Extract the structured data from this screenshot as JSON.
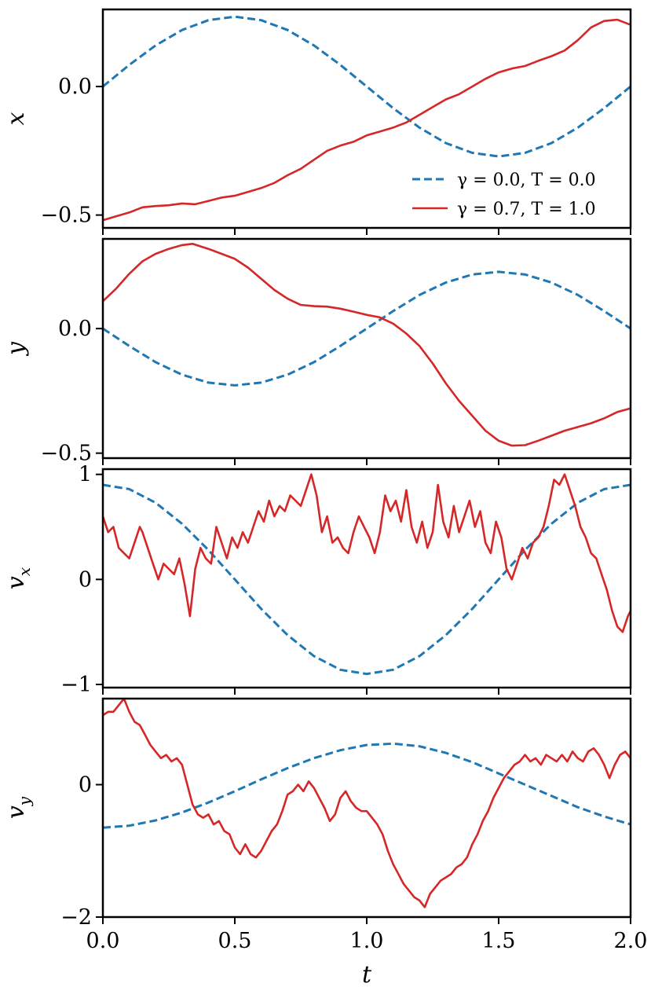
{
  "chart_data": {
    "type": "line",
    "xlabel": "t",
    "xlim": [
      0.0,
      2.0
    ],
    "xticks": [
      0.0,
      0.5,
      1.0,
      1.5,
      2.0
    ],
    "xtick_labels": [
      "0.0",
      "0.5",
      "1.0",
      "1.5",
      "2.0"
    ],
    "legend": {
      "placement": "lower-right",
      "panel": "x",
      "entries": [
        {
          "series": "dashed",
          "label": "γ = 0.0, T = 0.0"
        },
        {
          "series": "solid",
          "label": "γ = 0.7, T = 1.0"
        }
      ]
    },
    "colors": {
      "dashed": "#1f77b4",
      "solid": "#d62728"
    },
    "grid": false,
    "panels": [
      {
        "ylabel": "x",
        "ylabel_sub": "",
        "ylim": [
          -0.55,
          0.3
        ],
        "yticks": [
          -0.5,
          0.0
        ],
        "ytick_labels": [
          "−0.5",
          "0.0"
        ],
        "series": [
          {
            "name": "γ = 0.0, T = 0.0",
            "style": "dashed",
            "x": [
              0.0,
              0.1,
              0.2,
              0.3,
              0.4,
              0.5,
              0.6,
              0.7,
              0.8,
              0.9,
              1.0,
              1.1,
              1.2,
              1.3,
              1.4,
              1.5,
              1.6,
              1.7,
              1.8,
              1.9,
              2.0
            ],
            "y": [
              0.0,
              0.084,
              0.16,
              0.22,
              0.258,
              0.272,
              0.258,
              0.22,
              0.16,
              0.084,
              0.0,
              -0.084,
              -0.16,
              -0.22,
              -0.258,
              -0.272,
              -0.258,
              -0.22,
              -0.16,
              -0.084,
              0.0
            ]
          },
          {
            "name": "γ = 0.7, T = 1.0",
            "style": "solid",
            "x": [
              0.0,
              0.05,
              0.1,
              0.15,
              0.2,
              0.25,
              0.3,
              0.35,
              0.4,
              0.45,
              0.5,
              0.55,
              0.6,
              0.65,
              0.7,
              0.75,
              0.8,
              0.85,
              0.9,
              0.95,
              1.0,
              1.05,
              1.1,
              1.15,
              1.2,
              1.25,
              1.3,
              1.35,
              1.4,
              1.45,
              1.5,
              1.55,
              1.6,
              1.65,
              1.7,
              1.75,
              1.8,
              1.85,
              1.9,
              1.95,
              2.0
            ],
            "y": [
              -0.52,
              -0.505,
              -0.49,
              -0.47,
              -0.465,
              -0.462,
              -0.455,
              -0.458,
              -0.445,
              -0.432,
              -0.425,
              -0.41,
              -0.395,
              -0.375,
              -0.345,
              -0.32,
              -0.285,
              -0.25,
              -0.23,
              -0.215,
              -0.19,
              -0.175,
              -0.16,
              -0.14,
              -0.11,
              -0.08,
              -0.05,
              -0.03,
              0.0,
              0.03,
              0.055,
              0.07,
              0.08,
              0.1,
              0.118,
              0.14,
              0.18,
              0.23,
              0.255,
              0.26,
              0.24
            ]
          }
        ]
      },
      {
        "ylabel": "y",
        "ylabel_sub": "",
        "ylim": [
          -0.52,
          0.36
        ],
        "yticks": [
          -0.5,
          0.0
        ],
        "ytick_labels": [
          "−0.5",
          "0.0"
        ],
        "series": [
          {
            "name": "γ = 0.0, T = 0.0",
            "style": "dashed",
            "x": [
              0.0,
              0.1,
              0.2,
              0.3,
              0.4,
              0.5,
              0.6,
              0.7,
              0.8,
              0.9,
              1.0,
              1.1,
              1.2,
              1.3,
              1.4,
              1.5,
              1.6,
              1.7,
              1.8,
              1.9,
              2.0
            ],
            "y": [
              0.0,
              -0.07,
              -0.135,
              -0.185,
              -0.217,
              -0.228,
              -0.217,
              -0.185,
              -0.135,
              -0.07,
              0.0,
              0.07,
              0.135,
              0.185,
              0.217,
              0.228,
              0.217,
              0.185,
              0.135,
              0.07,
              0.0
            ]
          },
          {
            "name": "γ = 0.7, T = 1.0",
            "style": "solid",
            "x": [
              0.0,
              0.05,
              0.1,
              0.15,
              0.2,
              0.25,
              0.3,
              0.34,
              0.4,
              0.45,
              0.5,
              0.55,
              0.6,
              0.65,
              0.7,
              0.75,
              0.8,
              0.85,
              0.9,
              0.95,
              1.0,
              1.05,
              1.1,
              1.15,
              1.2,
              1.25,
              1.3,
              1.35,
              1.4,
              1.45,
              1.5,
              1.55,
              1.6,
              1.65,
              1.7,
              1.75,
              1.8,
              1.85,
              1.9,
              1.95,
              2.0
            ],
            "y": [
              0.11,
              0.16,
              0.22,
              0.27,
              0.3,
              0.32,
              0.335,
              0.34,
              0.32,
              0.3,
              0.28,
              0.245,
              0.2,
              0.155,
              0.12,
              0.095,
              0.09,
              0.088,
              0.08,
              0.068,
              0.055,
              0.045,
              0.02,
              -0.02,
              -0.07,
              -0.14,
              -0.22,
              -0.29,
              -0.35,
              -0.41,
              -0.45,
              -0.47,
              -0.468,
              -0.45,
              -0.43,
              -0.41,
              -0.395,
              -0.38,
              -0.36,
              -0.335,
              -0.32
            ]
          }
        ]
      },
      {
        "ylabel": "v",
        "ylabel_sub": "x",
        "ylim": [
          -1.03,
          1.05
        ],
        "yticks": [
          -1,
          0,
          1
        ],
        "ytick_labels": [
          "−1",
          "0",
          "1"
        ],
        "series": [
          {
            "name": "γ = 0.0, T = 0.0",
            "style": "dashed",
            "x": [
              0.0,
              0.1,
              0.2,
              0.3,
              0.4,
              0.5,
              0.6,
              0.7,
              0.8,
              0.9,
              1.0,
              1.1,
              1.2,
              1.3,
              1.4,
              1.5,
              1.6,
              1.7,
              1.8,
              1.9,
              2.0
            ],
            "y": [
              0.9,
              0.86,
              0.73,
              0.53,
              0.28,
              0.0,
              -0.28,
              -0.53,
              -0.73,
              -0.86,
              -0.9,
              -0.86,
              -0.73,
              -0.53,
              -0.28,
              0.0,
              0.28,
              0.53,
              0.73,
              0.86,
              0.9
            ]
          },
          {
            "name": "γ = 0.7, T = 1.0",
            "style": "solid",
            "x": [
              0.0,
              0.02,
              0.04,
              0.06,
              0.08,
              0.1,
              0.12,
              0.14,
              0.15,
              0.17,
              0.19,
              0.21,
              0.23,
              0.25,
              0.27,
              0.29,
              0.31,
              0.33,
              0.35,
              0.37,
              0.39,
              0.41,
              0.43,
              0.45,
              0.47,
              0.49,
              0.51,
              0.53,
              0.55,
              0.57,
              0.59,
              0.61,
              0.63,
              0.65,
              0.67,
              0.69,
              0.71,
              0.73,
              0.75,
              0.77,
              0.79,
              0.81,
              0.83,
              0.85,
              0.87,
              0.89,
              0.91,
              0.93,
              0.95,
              0.97,
              0.99,
              1.01,
              1.03,
              1.05,
              1.07,
              1.09,
              1.11,
              1.13,
              1.15,
              1.17,
              1.19,
              1.21,
              1.23,
              1.25,
              1.27,
              1.29,
              1.31,
              1.33,
              1.35,
              1.37,
              1.39,
              1.41,
              1.43,
              1.45,
              1.47,
              1.49,
              1.51,
              1.53,
              1.55,
              1.57,
              1.59,
              1.61,
              1.63,
              1.65,
              1.67,
              1.69,
              1.71,
              1.73,
              1.75,
              1.77,
              1.79,
              1.81,
              1.83,
              1.85,
              1.87,
              1.89,
              1.91,
              1.93,
              1.95,
              1.97,
              1.99,
              2.0
            ],
            "y": [
              0.6,
              0.45,
              0.5,
              0.3,
              0.25,
              0.2,
              0.35,
              0.5,
              0.45,
              0.3,
              0.15,
              0.0,
              0.15,
              0.1,
              0.05,
              0.2,
              -0.05,
              -0.35,
              0.1,
              0.3,
              0.2,
              0.15,
              0.5,
              0.35,
              0.2,
              0.4,
              0.3,
              0.45,
              0.35,
              0.5,
              0.65,
              0.55,
              0.75,
              0.6,
              0.7,
              0.65,
              0.8,
              0.75,
              0.7,
              0.85,
              1.0,
              0.8,
              0.45,
              0.6,
              0.35,
              0.4,
              0.3,
              0.25,
              0.45,
              0.6,
              0.5,
              0.4,
              0.25,
              0.45,
              0.8,
              0.65,
              0.75,
              0.55,
              0.85,
              0.5,
              0.35,
              0.55,
              0.3,
              0.45,
              0.9,
              0.55,
              0.4,
              0.7,
              0.45,
              0.6,
              0.75,
              0.5,
              0.65,
              0.35,
              0.25,
              0.55,
              0.4,
              0.1,
              0.0,
              0.15,
              0.3,
              0.2,
              0.35,
              0.4,
              0.5,
              0.7,
              0.95,
              0.9,
              1.0,
              0.85,
              0.7,
              0.5,
              0.4,
              0.25,
              0.2,
              0.05,
              -0.1,
              -0.3,
              -0.45,
              -0.5,
              -0.35,
              -0.3
            ]
          }
        ]
      },
      {
        "ylabel": "v",
        "ylabel_sub": "y",
        "ylim": [
          -2.0,
          1.3
        ],
        "yticks": [
          -2,
          0
        ],
        "ytick_labels": [
          "−2",
          "0"
        ],
        "series": [
          {
            "name": "γ = 0.0, T = 0.0",
            "style": "dashed",
            "x": [
              0.0,
              0.1,
              0.2,
              0.3,
              0.4,
              0.5,
              0.6,
              0.7,
              0.8,
              0.9,
              1.0,
              1.1,
              1.2,
              1.3,
              1.4,
              1.5,
              1.6,
              1.7,
              1.8,
              1.9,
              2.0
            ],
            "y": [
              -0.65,
              -0.62,
              -0.54,
              -0.42,
              -0.27,
              -0.1,
              0.08,
              0.25,
              0.4,
              0.52,
              0.6,
              0.62,
              0.58,
              0.48,
              0.34,
              0.17,
              0.0,
              -0.17,
              -0.34,
              -0.48,
              -0.6
            ]
          },
          {
            "name": "γ = 0.7, T = 1.0",
            "style": "solid",
            "x": [
              0.0,
              0.02,
              0.04,
              0.06,
              0.08,
              0.1,
              0.12,
              0.14,
              0.16,
              0.18,
              0.2,
              0.22,
              0.24,
              0.26,
              0.28,
              0.3,
              0.32,
              0.34,
              0.36,
              0.38,
              0.4,
              0.42,
              0.44,
              0.46,
              0.48,
              0.5,
              0.52,
              0.54,
              0.56,
              0.58,
              0.6,
              0.62,
              0.64,
              0.66,
              0.68,
              0.7,
              0.72,
              0.74,
              0.76,
              0.78,
              0.8,
              0.82,
              0.84,
              0.86,
              0.88,
              0.9,
              0.92,
              0.94,
              0.96,
              0.98,
              1.0,
              1.02,
              1.04,
              1.06,
              1.08,
              1.1,
              1.12,
              1.14,
              1.16,
              1.18,
              1.2,
              1.22,
              1.24,
              1.26,
              1.28,
              1.3,
              1.32,
              1.34,
              1.36,
              1.38,
              1.4,
              1.42,
              1.44,
              1.46,
              1.48,
              1.5,
              1.52,
              1.54,
              1.56,
              1.58,
              1.6,
              1.62,
              1.64,
              1.66,
              1.68,
              1.7,
              1.72,
              1.74,
              1.76,
              1.78,
              1.8,
              1.82,
              1.84,
              1.86,
              1.88,
              1.9,
              1.92,
              1.94,
              1.96,
              1.98,
              2.0
            ],
            "y": [
              1.05,
              1.1,
              1.1,
              1.2,
              1.3,
              1.1,
              0.95,
              0.9,
              0.75,
              0.6,
              0.5,
              0.4,
              0.45,
              0.35,
              0.4,
              0.3,
              0.0,
              -0.3,
              -0.45,
              -0.5,
              -0.45,
              -0.6,
              -0.55,
              -0.7,
              -0.75,
              -0.95,
              -1.05,
              -0.9,
              -1.05,
              -1.1,
              -1.0,
              -0.85,
              -0.7,
              -0.6,
              -0.4,
              -0.15,
              -0.1,
              0.0,
              -0.1,
              0.05,
              -0.05,
              -0.2,
              -0.35,
              -0.55,
              -0.45,
              -0.2,
              -0.1,
              -0.25,
              -0.35,
              -0.4,
              -0.4,
              -0.5,
              -0.6,
              -0.75,
              -1.0,
              -1.2,
              -1.35,
              -1.5,
              -1.6,
              -1.7,
              -1.75,
              -1.85,
              -1.65,
              -1.55,
              -1.45,
              -1.4,
              -1.35,
              -1.25,
              -1.2,
              -1.1,
              -0.9,
              -0.75,
              -0.55,
              -0.4,
              -0.2,
              -0.05,
              0.1,
              0.2,
              0.3,
              0.35,
              0.45,
              0.35,
              0.4,
              0.3,
              0.45,
              0.4,
              0.35,
              0.45,
              0.35,
              0.5,
              0.4,
              0.35,
              0.5,
              0.55,
              0.45,
              0.3,
              0.1,
              0.3,
              0.45,
              0.5,
              0.4
            ]
          }
        ]
      }
    ]
  }
}
